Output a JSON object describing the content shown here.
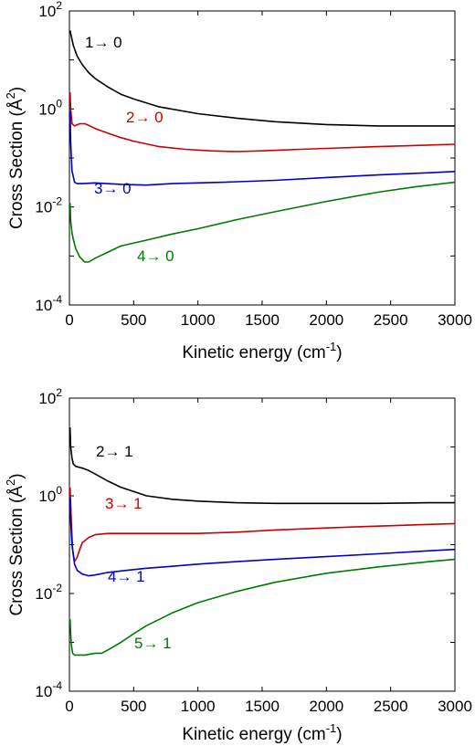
{
  "chart_data": [
    {
      "type": "line",
      "xlabel": "Kinetic energy (cm",
      "xlabel_sup": "-1",
      "xlabel_close": ")",
      "ylabel": "Cross Section (Å",
      "ylabel_sup": "2",
      "ylabel_close": ")",
      "xlim": [
        0,
        3000
      ],
      "ylim": [
        0.0001,
        100
      ],
      "yscale": "log",
      "grid": false,
      "x_ticks": [
        "0",
        "500",
        "1000",
        "1500",
        "2000",
        "2500",
        "3000"
      ],
      "y_ticks": [
        {
          "base": "10",
          "exp": "-4"
        },
        {
          "base": "10",
          "exp": "-2"
        },
        {
          "base": "10",
          "exp": "0"
        },
        {
          "base": "10",
          "exp": "2"
        }
      ],
      "series": [
        {
          "name": "1→ 0",
          "color": "#000000",
          "x": [
            5,
            30,
            60,
            100,
            150,
            200,
            300,
            400,
            500,
            700,
            1000,
            1300,
            1600,
            2000,
            2400,
            2800,
            3000
          ],
          "y": [
            40,
            20,
            12,
            8,
            5.5,
            4.2,
            2.8,
            2.0,
            1.6,
            1.1,
            0.8,
            0.65,
            0.55,
            0.48,
            0.45,
            0.45,
            0.45
          ]
        },
        {
          "name": "2→ 0",
          "color": "#cc0000",
          "x": [
            5,
            10,
            20,
            40,
            80,
            120,
            160,
            200,
            300,
            400,
            500,
            700,
            900,
            1100,
            1300,
            1500,
            1800,
            2100,
            2400,
            2700,
            3000
          ],
          "y": [
            2.2,
            1.0,
            0.5,
            0.45,
            0.5,
            0.5,
            0.45,
            0.4,
            0.32,
            0.26,
            0.22,
            0.17,
            0.15,
            0.14,
            0.135,
            0.14,
            0.15,
            0.16,
            0.17,
            0.18,
            0.19
          ]
        },
        {
          "name": "3→ 0",
          "color": "#0000cc",
          "x": [
            5,
            10,
            20,
            40,
            60,
            100,
            200,
            400,
            600,
            800,
            1200,
            1600,
            2000,
            2400,
            2800,
            3000
          ],
          "y": [
            0.9,
            0.2,
            0.055,
            0.032,
            0.03,
            0.03,
            0.031,
            0.029,
            0.028,
            0.03,
            0.032,
            0.035,
            0.04,
            0.045,
            0.05,
            0.053
          ]
        },
        {
          "name": "4→ 0",
          "color": "#007a00",
          "x": [
            5,
            10,
            20,
            30,
            50,
            80,
            120,
            150,
            200,
            300,
            400,
            600,
            800,
            1000,
            1300,
            1600,
            2000,
            2400,
            2700,
            3000
          ],
          "y": [
            0.012,
            0.005,
            0.003,
            0.0022,
            0.0014,
            0.00095,
            0.00075,
            0.00075,
            0.0009,
            0.0012,
            0.0016,
            0.0021,
            0.0028,
            0.0036,
            0.0055,
            0.008,
            0.013,
            0.02,
            0.026,
            0.032
          ]
        }
      ]
    },
    {
      "type": "line",
      "xlabel": "Kinetic energy (cm",
      "xlabel_sup": "-1",
      "xlabel_close": ")",
      "ylabel": "Cross Section (Å",
      "ylabel_sup": "2",
      "ylabel_close": ")",
      "xlim": [
        0,
        3000
      ],
      "ylim": [
        0.0001,
        100
      ],
      "yscale": "log",
      "grid": false,
      "x_ticks": [
        "0",
        "500",
        "1000",
        "1500",
        "2000",
        "2500",
        "3000"
      ],
      "y_ticks": [
        {
          "base": "10",
          "exp": "-4"
        },
        {
          "base": "10",
          "exp": "-2"
        },
        {
          "base": "10",
          "exp": "0"
        },
        {
          "base": "10",
          "exp": "2"
        }
      ],
      "series": [
        {
          "name": "2→ 1",
          "color": "#000000",
          "x": [
            5,
            10,
            20,
            30,
            50,
            100,
            150,
            200,
            300,
            400,
            600,
            800,
            1000,
            1300,
            1600,
            2000,
            2400,
            2800,
            3000
          ],
          "y": [
            25,
            10,
            6,
            4.5,
            4.0,
            3.7,
            3.3,
            2.8,
            2.0,
            1.5,
            1.0,
            0.85,
            0.78,
            0.72,
            0.7,
            0.7,
            0.7,
            0.72,
            0.72
          ]
        },
        {
          "name": "3→ 1",
          "color": "#cc0000",
          "x": [
            5,
            15,
            25,
            40,
            60,
            80,
            100,
            150,
            200,
            300,
            400,
            500,
            600,
            800,
            1000,
            1300,
            1600,
            2000,
            2400,
            2800,
            3000
          ],
          "y": [
            1.5,
            0.3,
            0.08,
            0.045,
            0.055,
            0.08,
            0.11,
            0.14,
            0.16,
            0.17,
            0.17,
            0.17,
            0.17,
            0.17,
            0.17,
            0.18,
            0.2,
            0.22,
            0.24,
            0.26,
            0.27
          ]
        },
        {
          "name": "4→ 1",
          "color": "#0000cc",
          "x": [
            5,
            10,
            20,
            40,
            60,
            100,
            150,
            200,
            300,
            400,
            600,
            800,
            1000,
            1300,
            1600,
            2000,
            2400,
            2800,
            3000
          ],
          "y": [
            0.9,
            0.3,
            0.1,
            0.04,
            0.03,
            0.025,
            0.023,
            0.024,
            0.027,
            0.029,
            0.033,
            0.036,
            0.04,
            0.045,
            0.05,
            0.057,
            0.065,
            0.075,
            0.08
          ]
        },
        {
          "name": "5→ 1",
          "color": "#007a00",
          "x": [
            5,
            10,
            15,
            25,
            40,
            80,
            120,
            200,
            250,
            300,
            400,
            500,
            600,
            800,
            1000,
            1300,
            1600,
            2000,
            2400,
            2800,
            3000
          ],
          "y": [
            0.003,
            0.0015,
            0.0009,
            0.0006,
            0.00055,
            0.00055,
            0.00055,
            0.0006,
            0.0006,
            0.0007,
            0.001,
            0.0015,
            0.0022,
            0.004,
            0.0065,
            0.011,
            0.017,
            0.026,
            0.035,
            0.045,
            0.05
          ]
        }
      ]
    }
  ]
}
